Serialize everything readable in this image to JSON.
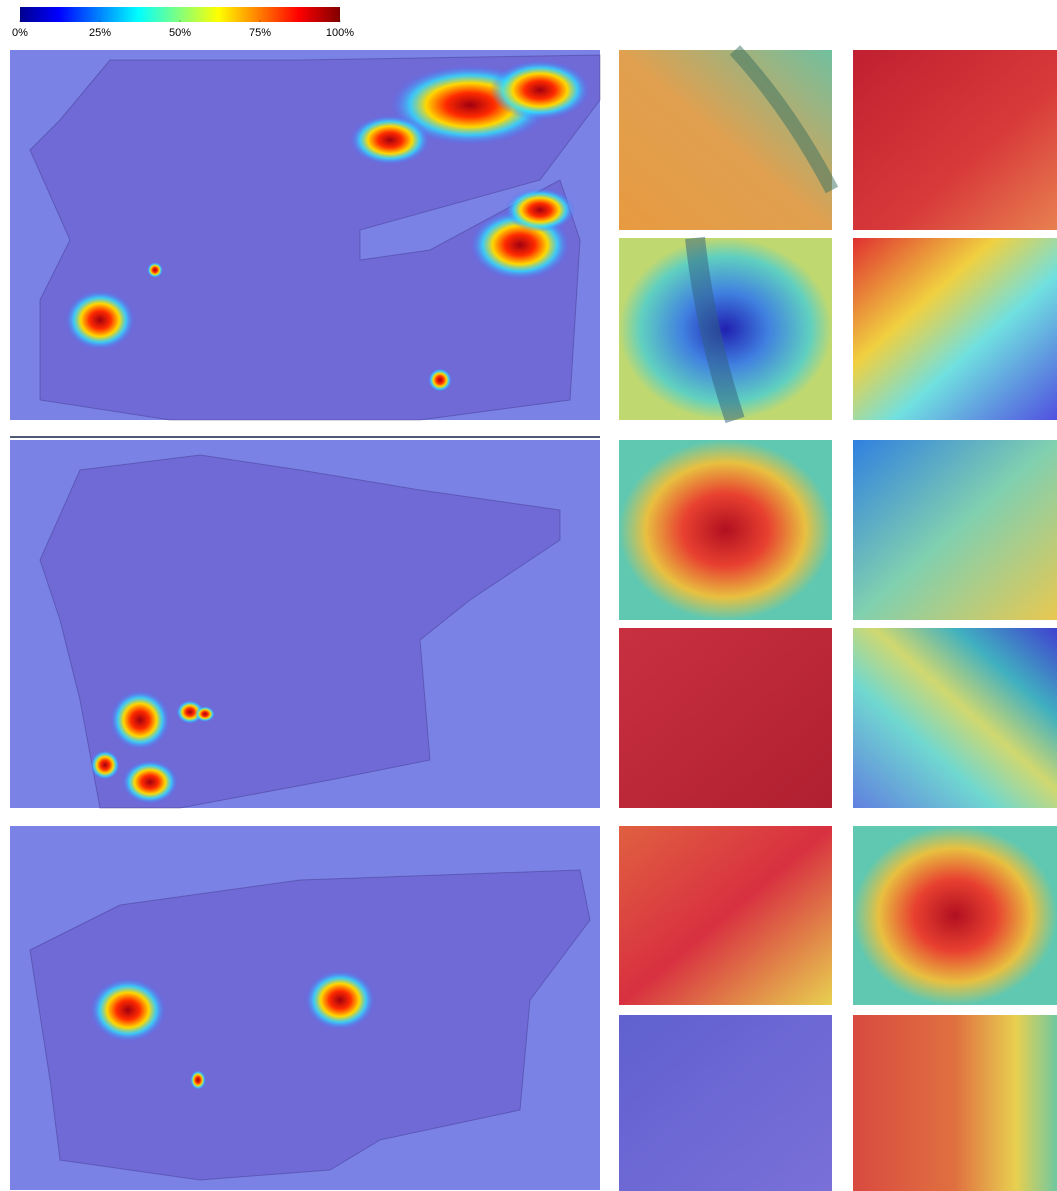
{
  "colorbar": {
    "ticks": [
      {
        "value": 0,
        "label": "0%"
      },
      {
        "value": 25,
        "label": "25%"
      },
      {
        "value": 50,
        "label": "50%"
      },
      {
        "value": 75,
        "label": "75%"
      },
      {
        "value": 100,
        "label": "100%"
      }
    ],
    "lim": [
      0,
      100
    ]
  }
}
